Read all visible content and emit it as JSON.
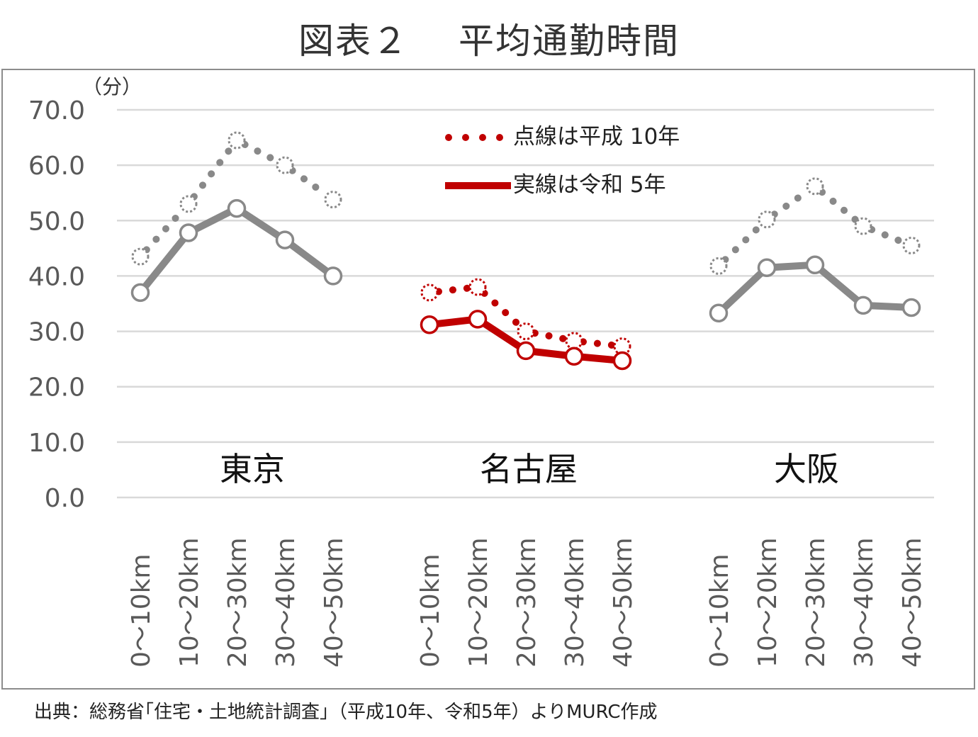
{
  "title_main": "図表２",
  "title_sub": "平均通勤時間",
  "source": "出典：総務省｢住宅・土地統計調査｣（平成10年、令和5年）よりMURC作成",
  "colors": {
    "tokyo_osaka": "#898989",
    "nagoya": "#c00000",
    "grid": "#d9d9d9",
    "axis_text": "#595959"
  },
  "chart_data": {
    "type": "line",
    "unit_label": "（分）",
    "ylim": [
      0,
      70
    ],
    "y_ticks": [
      "0.0",
      "10.0",
      "20.0",
      "30.0",
      "40.0",
      "50.0",
      "60.0",
      "70.0"
    ],
    "grid": true,
    "legend_position": "top-center",
    "legend": [
      {
        "label": "点線は平成 10年",
        "style": "dotted",
        "color": "#c00000"
      },
      {
        "label": "実線は令和 5年",
        "style": "solid",
        "color": "#c00000"
      }
    ],
    "categories": [
      "0～10km",
      "10～20km",
      "20～30km",
      "30～40km",
      "40～50km"
    ],
    "groups": [
      {
        "name": "東京",
        "color": "#898989",
        "series": [
          {
            "name": "平成10年",
            "style": "dotted",
            "values": [
              43.5,
              53.0,
              64.5,
              60.0,
              53.8
            ]
          },
          {
            "name": "令和5年",
            "style": "solid",
            "values": [
              37.0,
              47.8,
              52.2,
              46.5,
              40.0
            ]
          }
        ]
      },
      {
        "name": "名古屋",
        "color": "#c00000",
        "series": [
          {
            "name": "平成10年",
            "style": "dotted",
            "values": [
              37.0,
              38.0,
              30.0,
              28.3,
              27.3
            ]
          },
          {
            "name": "令和5年",
            "style": "solid",
            "values": [
              31.2,
              32.2,
              26.5,
              25.5,
              24.7
            ]
          }
        ]
      },
      {
        "name": "大阪",
        "color": "#898989",
        "series": [
          {
            "name": "平成10年",
            "style": "dotted",
            "values": [
              41.8,
              50.2,
              56.2,
              49.0,
              45.5
            ]
          },
          {
            "name": "令和5年",
            "style": "solid",
            "values": [
              33.3,
              41.5,
              42.0,
              34.7,
              34.3
            ]
          }
        ]
      }
    ]
  }
}
